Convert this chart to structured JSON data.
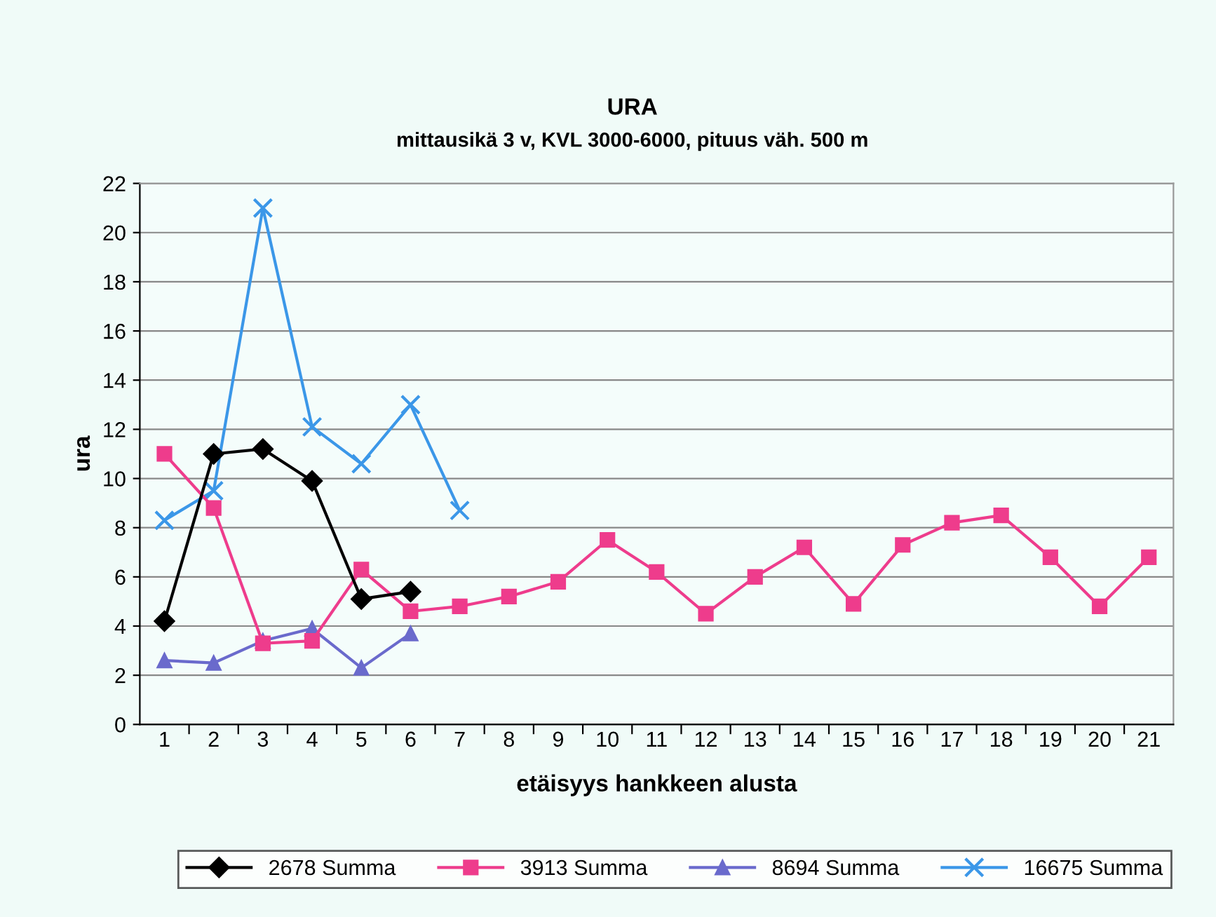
{
  "chart_data": {
    "type": "line",
    "title": "URA",
    "subtitle": "mittausikä 3 v, KVL 3000-6000, pituus väh. 500 m",
    "xlabel": "etäisyys hankkeen alusta",
    "ylabel": "ura",
    "categories": [
      "1",
      "2",
      "3",
      "4",
      "5",
      "6",
      "7",
      "8",
      "9",
      "10",
      "11",
      "12",
      "13",
      "14",
      "15",
      "16",
      "17",
      "18",
      "19",
      "20",
      "21"
    ],
    "series": [
      {
        "name": "2678 Summa",
        "color": "#000000",
        "marker": "diamond",
        "values": [
          4.2,
          11.0,
          11.2,
          9.9,
          5.1,
          5.4,
          null,
          null,
          null,
          null,
          null,
          null,
          null,
          null,
          null,
          null,
          null,
          null,
          null,
          null,
          null
        ]
      },
      {
        "name": "3913 Summa",
        "color": "#ee3c8c",
        "marker": "square",
        "values": [
          11.0,
          8.8,
          3.3,
          3.4,
          6.3,
          4.6,
          4.8,
          5.2,
          5.8,
          7.5,
          6.2,
          4.5,
          6.0,
          7.2,
          4.9,
          7.3,
          8.2,
          8.5,
          6.8,
          4.8,
          6.8
        ]
      },
      {
        "name": "8694 Summa",
        "color": "#6a6acc",
        "marker": "triangle",
        "values": [
          2.6,
          2.5,
          3.4,
          3.9,
          2.3,
          3.7,
          null,
          null,
          null,
          null,
          null,
          null,
          null,
          null,
          null,
          null,
          null,
          null,
          null,
          null,
          null
        ]
      },
      {
        "name": "16675 Summa",
        "color": "#3b97e8",
        "marker": "cross",
        "values": [
          8.3,
          9.5,
          21.0,
          12.1,
          10.6,
          13.0,
          8.7,
          null,
          null,
          null,
          null,
          null,
          null,
          null,
          null,
          null,
          null,
          null,
          null,
          null,
          null
        ]
      }
    ],
    "ylim": [
      0,
      22
    ],
    "yticks": [
      0,
      2,
      4,
      6,
      8,
      10,
      12,
      14,
      16,
      18,
      20,
      22
    ],
    "grid": "y",
    "legend": "bottom"
  }
}
